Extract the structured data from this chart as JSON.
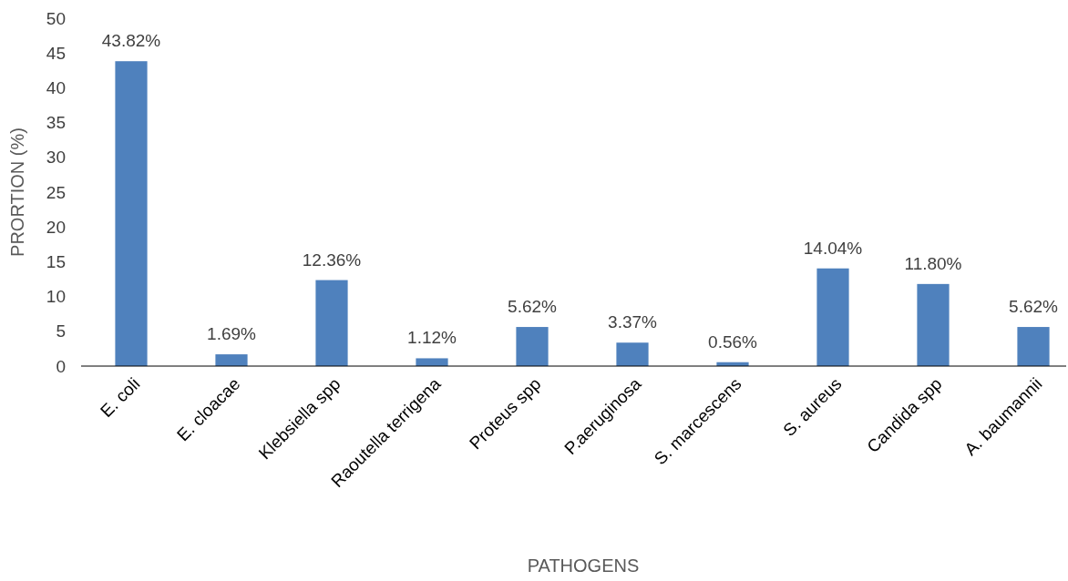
{
  "chart_data": {
    "type": "bar",
    "xlabel": "PATHOGENS",
    "ylabel": "PRORTION (%)",
    "categories": [
      "E. coli",
      "E. cloacae",
      "Klebsiella spp",
      "Raoutella terrigena",
      "Proteus spp",
      "P.aeruginosa",
      "S. marcescens",
      "S. aureus",
      "Candida spp",
      "A. baumannii"
    ],
    "values": [
      43.82,
      1.69,
      12.36,
      1.12,
      5.62,
      3.37,
      0.56,
      14.04,
      11.8,
      5.62
    ],
    "value_labels": [
      "43.82%",
      "1.69%",
      "12.36%",
      "1.12%",
      "5.62%",
      "3.37%",
      "0.56%",
      "14.04%",
      "11.80%",
      "5.62%"
    ],
    "color": "#4f81bd",
    "ylim": [
      0,
      50
    ],
    "yticks": [
      0,
      5,
      10,
      15,
      20,
      25,
      30,
      35,
      40,
      45,
      50
    ]
  }
}
